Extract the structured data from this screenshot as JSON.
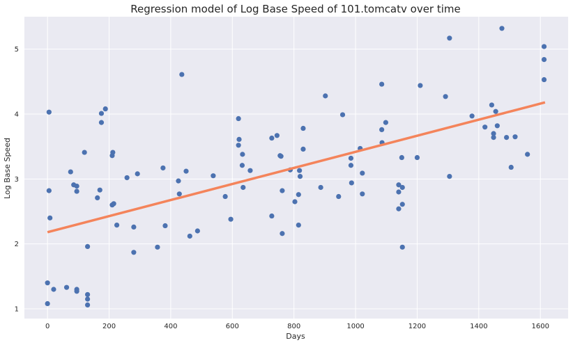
{
  "chart_data": {
    "type": "scatter",
    "title": "Regression model of Log Base Speed of 101.tomcatv over time",
    "xlabel": "Days",
    "ylabel": "Log Base Speed",
    "xlim": [
      -75,
      1690
    ],
    "ylim": [
      0.85,
      5.5
    ],
    "xticks": [
      0,
      200,
      400,
      600,
      800,
      1000,
      1200,
      1400,
      1600
    ],
    "yticks": [
      1,
      2,
      3,
      4,
      5
    ],
    "grid": true,
    "colors": {
      "points": "#4c72b0",
      "regression": "#f4845b",
      "background": "#eaeaf2",
      "grid": "#ffffff"
    },
    "regression_line": {
      "x": [
        0,
        1615
      ],
      "y": [
        2.18,
        4.18
      ]
    },
    "points": [
      [
        0,
        1.4
      ],
      [
        0,
        1.08
      ],
      [
        5,
        4.03
      ],
      [
        5,
        2.82
      ],
      [
        8,
        2.4
      ],
      [
        20,
        1.3
      ],
      [
        62,
        1.33
      ],
      [
        75,
        3.11
      ],
      [
        85,
        2.91
      ],
      [
        95,
        2.89
      ],
      [
        95,
        2.81
      ],
      [
        95,
        1.3
      ],
      [
        95,
        1.27
      ],
      [
        120,
        3.41
      ],
      [
        130,
        1.96
      ],
      [
        130,
        1.22
      ],
      [
        130,
        1.15
      ],
      [
        130,
        1.06
      ],
      [
        162,
        2.71
      ],
      [
        170,
        2.83
      ],
      [
        175,
        4.01
      ],
      [
        175,
        3.87
      ],
      [
        188,
        4.08
      ],
      [
        210,
        3.36
      ],
      [
        212,
        3.41
      ],
      [
        210,
        2.6
      ],
      [
        215,
        2.62
      ],
      [
        225,
        2.29
      ],
      [
        258,
        3.02
      ],
      [
        280,
        1.87
      ],
      [
        280,
        2.26
      ],
      [
        292,
        3.08
      ],
      [
        357,
        1.95
      ],
      [
        375,
        3.17
      ],
      [
        382,
        2.28
      ],
      [
        425,
        2.97
      ],
      [
        428,
        2.77
      ],
      [
        436,
        4.61
      ],
      [
        450,
        3.12
      ],
      [
        462,
        2.12
      ],
      [
        487,
        2.2
      ],
      [
        538,
        3.05
      ],
      [
        577,
        2.73
      ],
      [
        595,
        2.38
      ],
      [
        620,
        3.93
      ],
      [
        620,
        3.52
      ],
      [
        622,
        3.61
      ],
      [
        632,
        3.21
      ],
      [
        633,
        3.38
      ],
      [
        635,
        2.87
      ],
      [
        658,
        3.13
      ],
      [
        728,
        3.63
      ],
      [
        728,
        2.43
      ],
      [
        745,
        3.67
      ],
      [
        755,
        3.36
      ],
      [
        758,
        3.35
      ],
      [
        762,
        2.82
      ],
      [
        762,
        2.16
      ],
      [
        788,
        3.14
      ],
      [
        803,
        2.65
      ],
      [
        815,
        2.76
      ],
      [
        815,
        2.29
      ],
      [
        818,
        3.13
      ],
      [
        820,
        3.04
      ],
      [
        830,
        3.78
      ],
      [
        830,
        3.46
      ],
      [
        887,
        2.87
      ],
      [
        902,
        4.28
      ],
      [
        945,
        2.73
      ],
      [
        958,
        3.99
      ],
      [
        985,
        3.32
      ],
      [
        985,
        3.21
      ],
      [
        987,
        2.94
      ],
      [
        1015,
        3.47
      ],
      [
        1022,
        3.09
      ],
      [
        1022,
        2.77
      ],
      [
        1085,
        4.46
      ],
      [
        1085,
        3.76
      ],
      [
        1086,
        3.56
      ],
      [
        1098,
        3.87
      ],
      [
        1140,
        2.91
      ],
      [
        1140,
        2.8
      ],
      [
        1140,
        2.54
      ],
      [
        1150,
        3.33
      ],
      [
        1152,
        2.87
      ],
      [
        1152,
        2.61
      ],
      [
        1152,
        1.95
      ],
      [
        1200,
        3.33
      ],
      [
        1210,
        4.44
      ],
      [
        1292,
        4.27
      ],
      [
        1305,
        5.17
      ],
      [
        1305,
        3.04
      ],
      [
        1378,
        3.97
      ],
      [
        1420,
        3.8
      ],
      [
        1442,
        4.14
      ],
      [
        1448,
        3.7
      ],
      [
        1448,
        3.64
      ],
      [
        1455,
        4.04
      ],
      [
        1460,
        3.82
      ],
      [
        1475,
        5.32
      ],
      [
        1490,
        3.64
      ],
      [
        1505,
        3.18
      ],
      [
        1518,
        3.65
      ],
      [
        1558,
        3.38
      ],
      [
        1612,
        5.04
      ],
      [
        1612,
        4.84
      ],
      [
        1612,
        4.53
      ]
    ]
  }
}
